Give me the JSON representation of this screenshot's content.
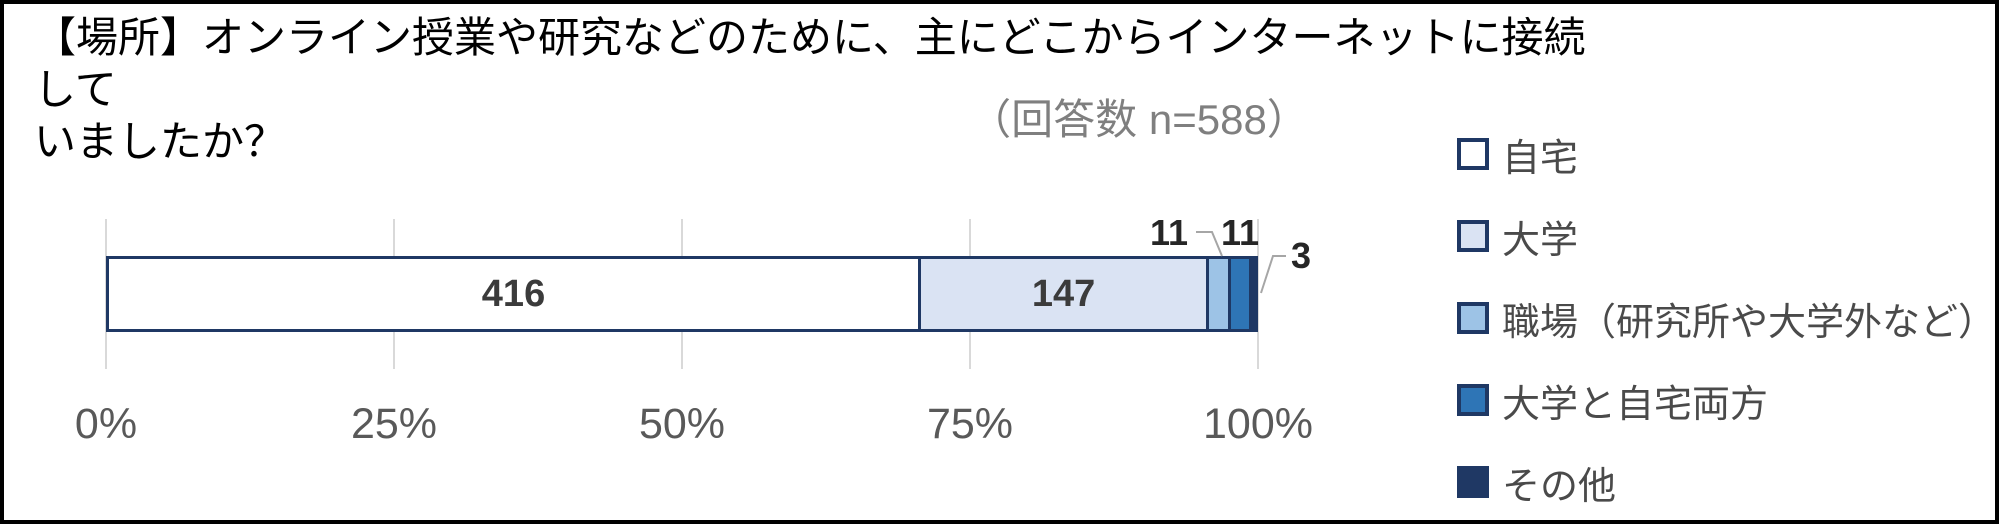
{
  "title": {
    "lines": [
      "【場所】オンライン授業や研究などのために、主にどこからインターネットに接続して",
      "いましたか？"
    ]
  },
  "note": "（回答数 n=588）",
  "chart_data": {
    "type": "bar",
    "orientation": "horizontal",
    "stacked": true,
    "title": "【場所】オンライン授業や研究などのために、主にどこからインターネットに接続していましたか？",
    "subtitle": "（回答数 n=588）",
    "n_total": 588,
    "series": [
      {
        "name": "自宅",
        "value": 416,
        "color": "#FFFFFF",
        "label_position": "inside"
      },
      {
        "name": "大学",
        "value": 147,
        "color": "#DAE3F3",
        "label_position": "inside"
      },
      {
        "name": "職場（研究所や大学外など）",
        "value": 11,
        "color": "#9DC3E6",
        "label_position": "callout"
      },
      {
        "name": "大学と自宅両方",
        "value": 11,
        "color": "#2E75B6",
        "label_position": "callout"
      },
      {
        "name": "その他",
        "value": 3,
        "color": "#1F3864",
        "label_position": "callout"
      }
    ],
    "x_ticks": [
      "0%",
      "25%",
      "50%",
      "75%",
      "100%"
    ],
    "xlim_percent": [
      0,
      100
    ],
    "grid": true,
    "legend_position": "right",
    "bar_border_color": "#1F3864",
    "gridline_color": "#D9D9D9",
    "leader_line_color": "#A6A6A6"
  }
}
